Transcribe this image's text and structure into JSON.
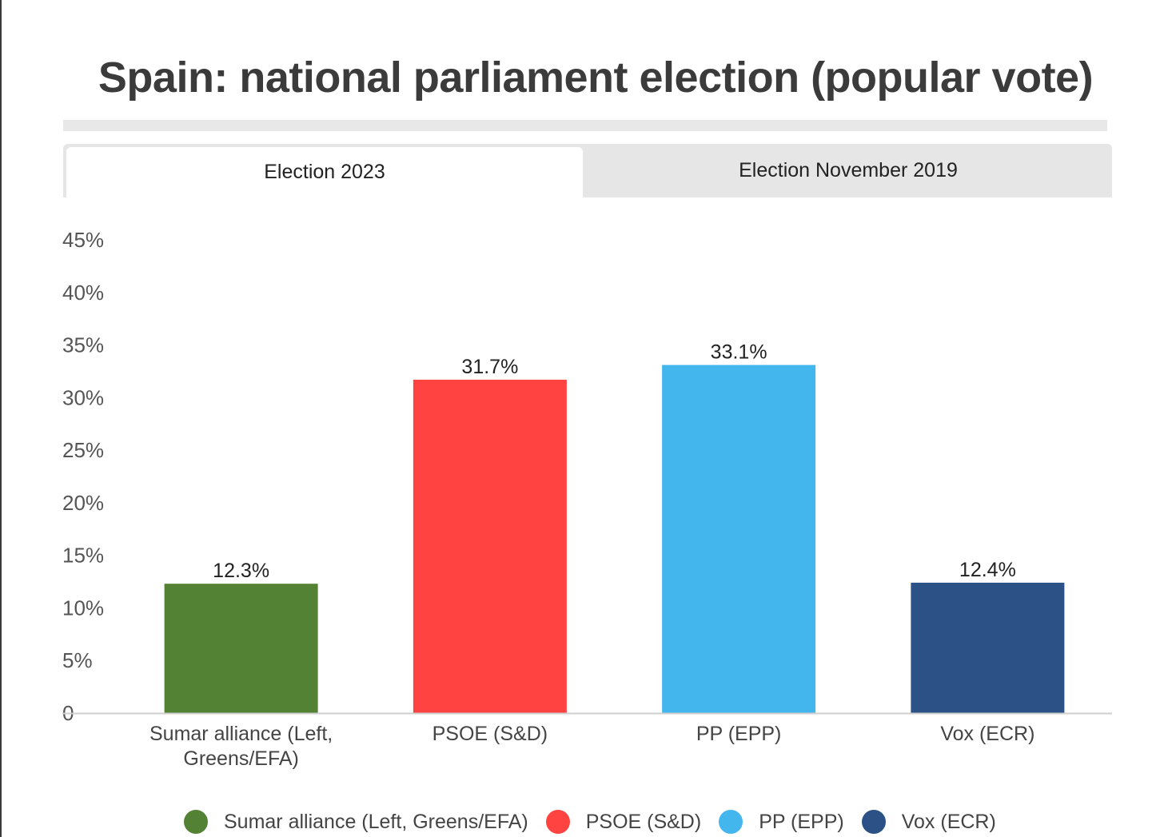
{
  "title": "Spain: national parliament election (popular vote)",
  "tabs": [
    {
      "label": "Election 2023",
      "active": true
    },
    {
      "label": "Election November 2019",
      "active": false
    }
  ],
  "chart_data": {
    "type": "bar",
    "title": "Spain: national parliament election (popular vote)",
    "categories": [
      "Sumar alliance (Left, Greens/EFA)",
      "PSOE (S&D)",
      "PP (EPP)",
      "Vox (ECR)"
    ],
    "category_lines": [
      [
        "Sumar alliance (Left,",
        "Greens/EFA)"
      ],
      [
        "PSOE (S&D)"
      ],
      [
        "PP (EPP)"
      ],
      [
        "Vox (ECR)"
      ]
    ],
    "values": [
      12.3,
      31.7,
      33.1,
      12.4
    ],
    "value_labels": [
      "12.3%",
      "31.7%",
      "33.1%",
      "12.4%"
    ],
    "colors": [
      "#548235",
      "#FF4340",
      "#44B6EE",
      "#2C5187"
    ],
    "ylim": [
      0,
      45
    ],
    "yticks": [
      0,
      5,
      10,
      15,
      20,
      25,
      30,
      35,
      40,
      45
    ],
    "ytick_labels": [
      "0",
      "5%",
      "10%",
      "15%",
      "20%",
      "25%",
      "30%",
      "35%",
      "40%",
      "45%"
    ],
    "xlabel": "",
    "ylabel": "",
    "grid": false,
    "legend": "bottom"
  },
  "legend": {
    "items": [
      {
        "label": "Sumar alliance (Left, Greens/EFA)",
        "color": "#548235"
      },
      {
        "label": "PSOE (S&D)",
        "color": "#FF4340"
      },
      {
        "label": "PP (EPP)",
        "color": "#44B6EE"
      },
      {
        "label": "Vox (ECR)",
        "color": "#2C5187"
      }
    ]
  }
}
